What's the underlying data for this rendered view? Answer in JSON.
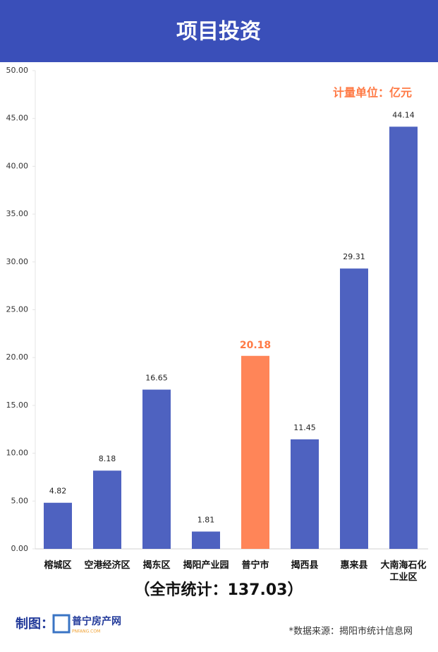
{
  "chart_data": {
    "type": "bar",
    "title": "项目投资",
    "categories": [
      "榕城区",
      "空港经济区",
      "揭东区",
      "揭阳产业园",
      "普宁市",
      "揭西县",
      "惠来县",
      "大南海石化工业区"
    ],
    "values": [
      4.82,
      8.18,
      16.65,
      1.81,
      20.18,
      11.45,
      29.31,
      44.14
    ],
    "colors": [
      "#4e62c0",
      "#4e62c0",
      "#4e62c0",
      "#4e62c0",
      "#ff8558",
      "#4e62c0",
      "#4e62c0",
      "#4e62c0"
    ],
    "value_label_colors": [
      "#222222",
      "#222222",
      "#222222",
      "#222222",
      "#ff7a45",
      "#222222",
      "#222222",
      "#222222"
    ],
    "ylim": [
      0,
      50
    ],
    "yticks": [
      {
        "value": 0,
        "label": "0.00"
      },
      {
        "value": 5,
        "label": "5.00"
      },
      {
        "value": 10,
        "label": "10.00"
      },
      {
        "value": 15,
        "label": "15.00"
      },
      {
        "value": 20,
        "label": "20.00"
      },
      {
        "value": 25,
        "label": "25.00"
      },
      {
        "value": 30,
        "label": "30.00"
      },
      {
        "value": 35,
        "label": "35.00"
      },
      {
        "value": 40,
        "label": "40.00"
      },
      {
        "value": 45,
        "label": "45.00"
      },
      {
        "value": 50,
        "label": "50.00"
      }
    ],
    "grid": false,
    "unit_note": "计量单位：亿元",
    "total_note": "（全市统计：137.03）",
    "credit": "制图：",
    "logo_text": "普宁房产网",
    "logo_subtext": "PNFANG.COM",
    "source": "*数据来源：揭阳市统计信息网"
  }
}
